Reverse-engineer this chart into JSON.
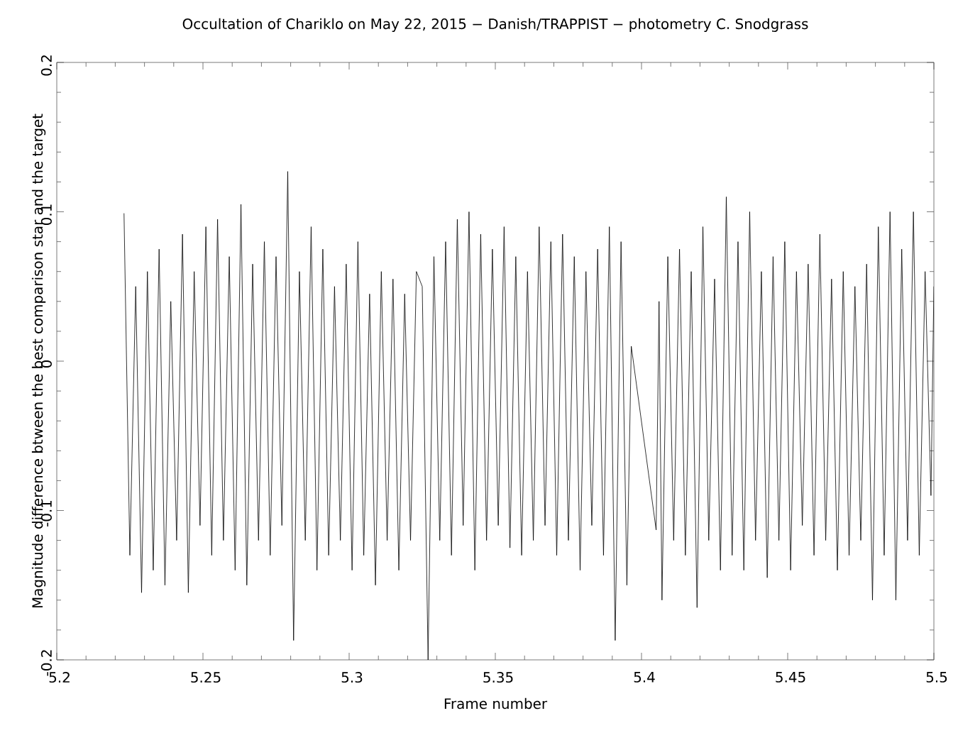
{
  "chart_data": {
    "type": "line",
    "title": "Occultation of Chariklo on May 22, 2015 − Danish/TRAPPIST − photometry C. Snodgrass",
    "xlabel": "Frame number",
    "ylabel": "Magnitude difference btween the best comparison star and the target",
    "xlim": [
      5.2,
      5.5
    ],
    "ylim": [
      -0.2,
      0.2
    ],
    "xticks": [
      5.2,
      5.25,
      5.3,
      5.35,
      5.4,
      5.45,
      5.5
    ],
    "yticks": [
      -0.2,
      -0.1,
      0,
      0.1,
      0.2
    ],
    "grid": false,
    "marker": "none",
    "line_style": "solid",
    "series": [
      {
        "color": "#000000",
        "x": [
          5.223,
          5.225,
          5.227,
          5.229,
          5.231,
          5.233,
          5.235,
          5.237,
          5.239,
          5.241,
          5.243,
          5.245,
          5.247,
          5.249,
          5.251,
          5.253,
          5.255,
          5.257,
          5.259,
          5.261,
          5.263,
          5.265,
          5.267,
          5.269,
          5.271,
          5.273,
          5.275,
          5.277,
          5.279,
          5.281,
          5.283,
          5.285,
          5.287,
          5.289,
          5.291,
          5.293,
          5.295,
          5.297,
          5.299,
          5.301,
          5.303,
          5.305,
          5.307,
          5.309,
          5.311,
          5.313,
          5.315,
          5.317,
          5.319,
          5.321,
          5.323,
          5.325,
          5.327,
          5.329,
          5.331,
          5.333,
          5.335,
          5.337,
          5.339,
          5.341,
          5.343,
          5.345,
          5.347,
          5.349,
          5.351,
          5.353,
          5.355,
          5.357,
          5.359,
          5.361,
          5.363,
          5.365,
          5.367,
          5.369,
          5.371,
          5.373,
          5.375,
          5.377,
          5.379,
          5.381,
          5.383,
          5.385,
          5.387,
          5.389,
          5.391,
          5.393,
          5.395,
          5.3965,
          5.405,
          5.406,
          5.407,
          5.409,
          5.411,
          5.413,
          5.415,
          5.417,
          5.419,
          5.421,
          5.423,
          5.425,
          5.427,
          5.429,
          5.431,
          5.433,
          5.435,
          5.437,
          5.439,
          5.441,
          5.443,
          5.445,
          5.447,
          5.449,
          5.451,
          5.453,
          5.455,
          5.457,
          5.459,
          5.461,
          5.463,
          5.465,
          5.467,
          5.469,
          5.471,
          5.473,
          5.475,
          5.477,
          5.479,
          5.481,
          5.483,
          5.485,
          5.487,
          5.489,
          5.491,
          5.493,
          5.495,
          5.497,
          5.499,
          5.5
        ],
        "values": [
          0.099,
          -0.13,
          0.05,
          -0.155,
          0.06,
          -0.14,
          0.075,
          -0.15,
          0.04,
          -0.12,
          0.085,
          -0.155,
          0.06,
          -0.11,
          0.09,
          -0.13,
          0.095,
          -0.12,
          0.07,
          -0.14,
          0.105,
          -0.15,
          0.065,
          -0.12,
          0.08,
          -0.13,
          0.07,
          -0.11,
          0.127,
          -0.187,
          0.06,
          -0.12,
          0.09,
          -0.14,
          0.075,
          -0.13,
          0.05,
          -0.12,
          0.065,
          -0.14,
          0.08,
          -0.13,
          0.045,
          -0.15,
          0.06,
          -0.12,
          0.055,
          -0.14,
          0.045,
          -0.12,
          0.06,
          0.05,
          -0.2,
          0.07,
          -0.12,
          0.08,
          -0.13,
          0.095,
          -0.11,
          0.1,
          -0.14,
          0.085,
          -0.12,
          0.075,
          -0.11,
          0.09,
          -0.125,
          0.07,
          -0.13,
          0.06,
          -0.12,
          0.09,
          -0.11,
          0.08,
          -0.13,
          0.085,
          -0.12,
          0.07,
          -0.14,
          0.06,
          -0.11,
          0.075,
          -0.13,
          0.09,
          -0.187,
          0.08,
          -0.15,
          0.01,
          -0.113,
          0.04,
          -0.16,
          0.07,
          -0.12,
          0.075,
          -0.13,
          0.06,
          -0.165,
          0.09,
          -0.12,
          0.055,
          -0.14,
          0.11,
          -0.13,
          0.08,
          -0.14,
          0.1,
          -0.12,
          0.06,
          -0.145,
          0.07,
          -0.12,
          0.08,
          -0.14,
          0.06,
          -0.11,
          0.065,
          -0.13,
          0.085,
          -0.12,
          0.055,
          -0.14,
          0.06,
          -0.13,
          0.05,
          -0.12,
          0.065,
          -0.16,
          0.09,
          -0.13,
          0.1,
          -0.16,
          0.075,
          -0.12,
          0.1,
          -0.13,
          0.06,
          -0.09,
          0.05
        ]
      }
    ]
  }
}
